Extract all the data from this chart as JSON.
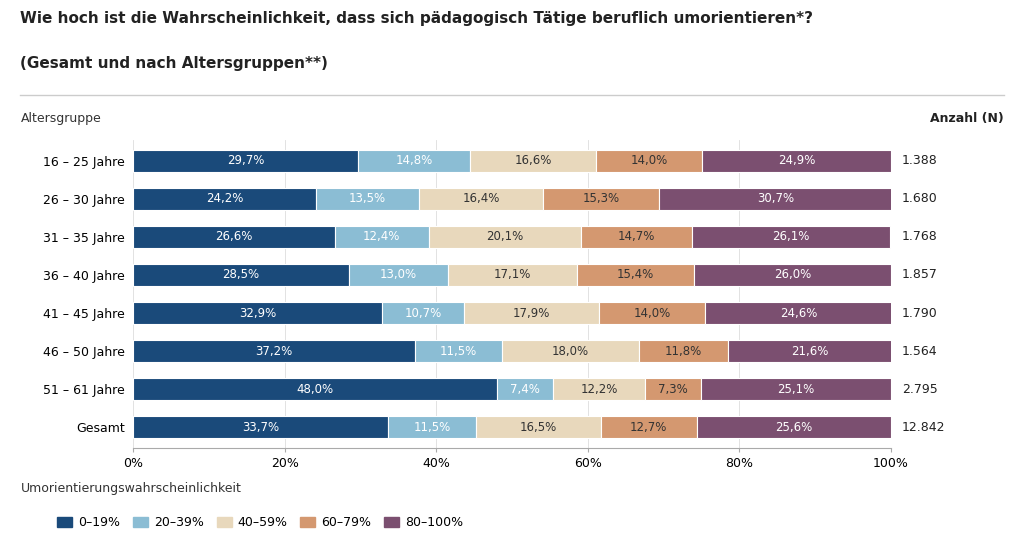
{
  "title_line1": "Wie hoch ist die Wahrscheinlichkeit, dass sich pädagogisch Tätige beruflich umorientieren*?",
  "title_line2": "(Gesamt und nach Altersgruppen**)",
  "categories": [
    "16 – 25 Jahre",
    "26 – 30 Jahre",
    "31 – 35 Jahre",
    "36 – 40 Jahre",
    "41 – 45 Jahre",
    "46 – 50 Jahre",
    "51 – 61 Jahre",
    "Gesamt"
  ],
  "counts": [
    "1.388",
    "1.680",
    "1.768",
    "1.857",
    "1.790",
    "1.564",
    "2.795",
    "12.842"
  ],
  "segments": {
    "0–19%": [
      29.7,
      24.2,
      26.6,
      28.5,
      32.9,
      37.2,
      48.0,
      33.7
    ],
    "20–39%": [
      14.8,
      13.5,
      12.4,
      13.0,
      10.7,
      11.5,
      7.4,
      11.5
    ],
    "40–59%": [
      16.6,
      16.4,
      20.1,
      17.1,
      17.9,
      18.0,
      12.2,
      16.5
    ],
    "60–79%": [
      14.0,
      15.3,
      14.7,
      15.4,
      14.0,
      11.8,
      7.3,
      12.7
    ],
    "80–100%": [
      24.9,
      30.7,
      26.1,
      26.0,
      24.6,
      21.6,
      25.1,
      25.6
    ]
  },
  "colors": [
    "#1a4a7a",
    "#8bbdd4",
    "#e8d8bc",
    "#d49870",
    "#7b4f70"
  ],
  "legend_labels": [
    "0–19%",
    "20–39%",
    "40–59%",
    "60–79%",
    "80–100%"
  ],
  "ylabel_left": "Altersgruppe",
  "ylabel_right": "Anzahl (N)",
  "legend_title": "Umorientierungswahrscheinlichkeit",
  "background_color": "#ffffff",
  "bar_height": 0.6,
  "text_color_dark": "#333333",
  "text_color_white": "#ffffff",
  "label_fontsize": 8.5,
  "axis_fontsize": 9
}
